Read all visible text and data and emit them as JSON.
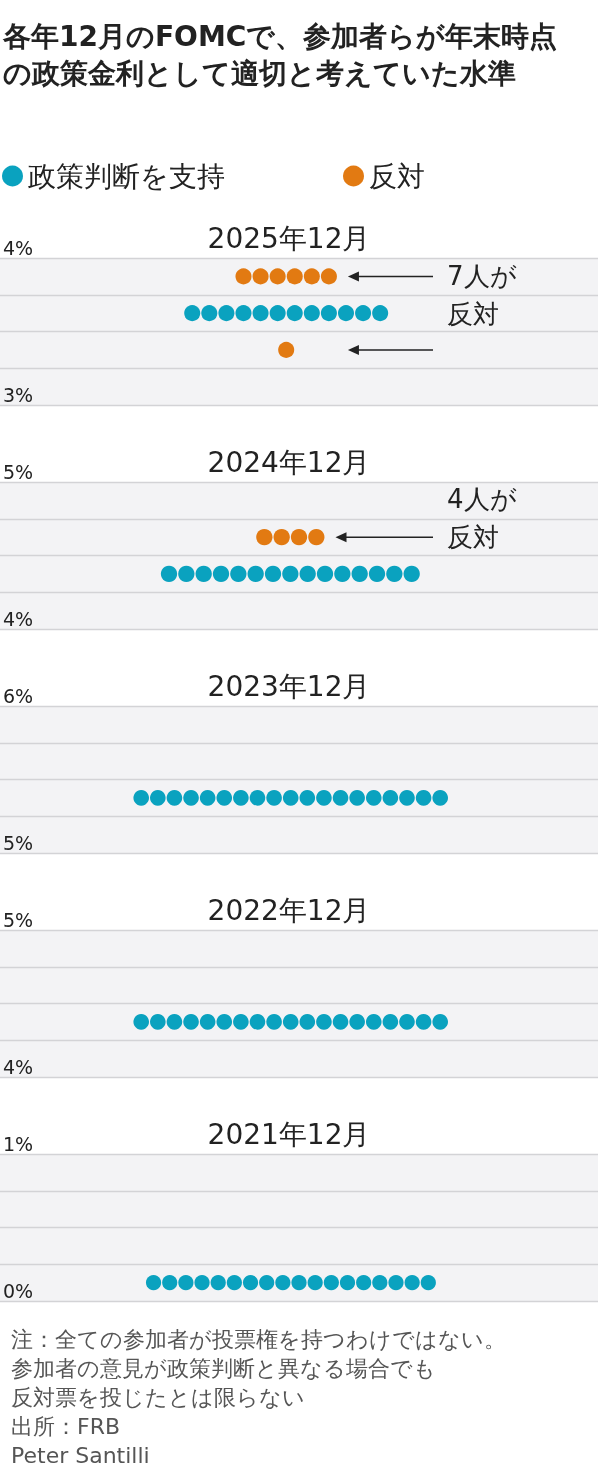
{
  "chart_data": [
    {
      "type": "scatter",
      "title": "各年12月のFOMCで、参加者らが年末時点の政策金利として適切と考えていた水準",
      "subtitle": "2025年12月",
      "legend": "top left",
      "marker": "circle",
      "grid": "y",
      "tick_labels": "y",
      "categories": [
        null,
        null,
        null,
        null,
        null,
        null,
        null,
        null,
        null,
        null,
        null,
        null,
        null,
        null,
        null,
        null,
        null,
        null,
        null,
        null,
        null,
        null,
        null,
        null,
        null,
        null,
        null,
        null,
        null,
        null,
        null,
        null,
        null,
        null,
        null,
        null,
        null,
        null,
        null,
        null,
        null,
        null,
        null,
        null,
        null,
        null,
        null,
        null,
        null,
        null,
        null,
        null,
        null,
        null,
        null,
        null,
        null,
        null,
        null,
        null,
        null,
        null,
        null,
        null,
        null,
        null,
        null,
        null,
        null,
        null
      ],
      "series": [
        {
          "name": "政策判断を支持",
          "color": "#0aa2bf",
          "values": [
            null,
            null,
            null,
            null,
            null,
            null,
            null,
            null,
            null,
            null,
            null,
            null,
            null,
            null,
            null,
            null,
            null,
            null,
            null,
            null,
            null,
            null,
            3.625,
            null,
            3.625,
            null,
            3.625,
            null,
            3.625,
            null,
            3.625,
            null,
            3.625,
            null,
            3.625,
            null,
            3.625,
            null,
            3.625,
            null,
            3.625,
            null,
            3.625,
            null,
            3.625,
            null,
            null,
            null,
            null,
            null,
            null,
            null,
            null,
            null,
            null,
            null,
            null,
            null,
            null,
            null,
            null,
            null,
            null,
            null,
            null,
            null,
            null,
            null,
            null,
            null
          ]
        },
        {
          "name": "反対",
          "color": "#e27a12",
          "values": [
            null,
            null,
            null,
            null,
            null,
            null,
            null,
            null,
            null,
            null,
            null,
            null,
            null,
            null,
            null,
            null,
            null,
            null,
            null,
            null,
            null,
            null,
            null,
            null,
            null,
            null,
            null,
            null,
            3.875,
            null,
            3.875,
            null,
            3.875,
            null,
            3.875,
            null,
            3.875,
            null,
            3.875,
            null,
            null,
            null,
            null,
            null,
            null,
            null,
            null,
            null,
            null,
            null,
            null,
            null,
            null,
            null,
            null,
            null,
            null,
            null,
            null,
            null,
            null,
            null,
            null,
            null,
            null,
            null,
            null,
            null,
            null,
            null
          ]
        },
        {
          "color": "#e27a12",
          "values": [
            null,
            null,
            null,
            null,
            null,
            null,
            null,
            null,
            null,
            null,
            null,
            null,
            null,
            null,
            null,
            null,
            null,
            null,
            null,
            null,
            null,
            null,
            null,
            null,
            null,
            null,
            null,
            null,
            null,
            null,
            null,
            null,
            null,
            3.375,
            null,
            null,
            null,
            null,
            null,
            null,
            null,
            null,
            null,
            null,
            null,
            null,
            null,
            null,
            null,
            null,
            null,
            null,
            null,
            null,
            null,
            null,
            null,
            null,
            null,
            null,
            null,
            null,
            null,
            null,
            null,
            null,
            null,
            null,
            null,
            null
          ]
        }
      ],
      "ylim": [
        3,
        4
      ],
      "yticks": [
        {
          "value": 3,
          "label": "3%"
        },
        {
          "value": 3.25,
          "label": null
        },
        {
          "value": 3.5,
          "label": null
        },
        {
          "value": 3.75,
          "label": null
        },
        {
          "value": 4,
          "label": "4%"
        }
      ],
      "annotations": [
        "7人が反対"
      ]
    },
    {
      "type": "scatter",
      "title": "2024年12月",
      "marker": "circle",
      "grid": "y",
      "tick_labels": "y",
      "categories": [
        null,
        null,
        null,
        null,
        null,
        null,
        null,
        null,
        null,
        null,
        null,
        null,
        null,
        null,
        null,
        null,
        null,
        null,
        null,
        null,
        null,
        null,
        null,
        null,
        null,
        null,
        null,
        null,
        null,
        null,
        null,
        null,
        null,
        null,
        null,
        null,
        null,
        null,
        null,
        null,
        null,
        null,
        null,
        null,
        null,
        null,
        null,
        null,
        null,
        null,
        null,
        null,
        null,
        null,
        null,
        null,
        null,
        null,
        null,
        null,
        null,
        null,
        null,
        null,
        null,
        null,
        null,
        null,
        null
      ],
      "series": [
        {
          "color": "#0aa2bf",
          "values": [
            null,
            null,
            null,
            null,
            null,
            null,
            null,
            null,
            null,
            null,
            null,
            null,
            null,
            null,
            null,
            null,
            null,
            null,
            null,
            4.375,
            null,
            4.375,
            null,
            4.375,
            null,
            4.375,
            null,
            4.375,
            null,
            4.375,
            null,
            4.375,
            null,
            4.375,
            null,
            4.375,
            null,
            4.375,
            null,
            4.375,
            null,
            4.375,
            null,
            4.375,
            null,
            4.375,
            null,
            4.375,
            null,
            null,
            null,
            null,
            null,
            null,
            null,
            null,
            null,
            null,
            null,
            null,
            null,
            null,
            null,
            null,
            null,
            null,
            null,
            null,
            null
          ]
        },
        {
          "color": "#e27a12",
          "values": [
            null,
            null,
            null,
            null,
            null,
            null,
            null,
            null,
            null,
            null,
            null,
            null,
            null,
            null,
            null,
            null,
            null,
            null,
            null,
            null,
            null,
            null,
            null,
            null,
            null,
            null,
            null,
            null,
            null,
            null,
            4.625,
            null,
            4.625,
            null,
            4.625,
            null,
            4.625,
            null,
            null,
            null,
            null,
            null,
            null,
            null,
            null,
            null,
            null,
            null,
            null,
            null,
            null,
            null,
            null,
            null,
            null,
            null,
            null,
            null,
            null,
            null,
            null,
            null,
            null,
            null,
            null,
            null,
            null,
            null,
            null
          ]
        }
      ],
      "ylim": [
        4,
        5
      ],
      "yticks": [
        {
          "value": 4,
          "label": "4%"
        },
        {
          "value": 4.25,
          "label": null
        },
        {
          "value": 4.5,
          "label": null
        },
        {
          "value": 4.75,
          "label": null
        },
        {
          "value": 5,
          "label": "5%"
        }
      ],
      "annotations": [
        "4人が反対"
      ]
    },
    {
      "type": "scatter",
      "title": "2023年12月",
      "marker": "circle",
      "grid": "y",
      "tick_labels": "y",
      "categories": [
        null,
        null,
        null,
        null,
        null,
        null,
        null,
        null,
        null,
        null,
        null,
        null,
        null,
        null,
        null,
        null,
        null,
        null,
        null,
        null,
        null,
        null,
        null,
        null,
        null,
        null,
        null,
        null,
        null,
        null,
        null,
        null,
        null,
        null,
        null,
        null
      ],
      "series": [
        {
          "color": "#0aa2bf",
          "values": [
            null,
            null,
            null,
            null,
            null,
            null,
            null,
            null,
            5.375,
            5.375,
            5.375,
            5.375,
            5.375,
            5.375,
            5.375,
            5.375,
            5.375,
            5.375,
            5.375,
            5.375,
            5.375,
            5.375,
            5.375,
            5.375,
            5.375,
            5.375,
            5.375,
            null,
            null,
            null,
            null,
            null,
            null,
            null,
            null,
            null
          ]
        }
      ],
      "ylim": [
        5,
        6
      ],
      "yticks": [
        {
          "value": 5,
          "label": "5%"
        },
        {
          "value": 5.25,
          "label": null
        },
        {
          "value": 5.5,
          "label": null
        },
        {
          "value": 5.75,
          "label": null
        },
        {
          "value": 6,
          "label": "6%"
        }
      ]
    },
    {
      "type": "scatter",
      "title": "2022年12月",
      "marker": "circle",
      "grid": "y",
      "tick_labels": "y",
      "categories": [
        null,
        null,
        null,
        null,
        null,
        null,
        null,
        null,
        null,
        null,
        null,
        null,
        null,
        null,
        null,
        null,
        null,
        null,
        null,
        null,
        null,
        null,
        null,
        null,
        null,
        null,
        null,
        null,
        null,
        null,
        null,
        null,
        null,
        null,
        null,
        null
      ],
      "series": [
        {
          "color": "#0aa2bf",
          "values": [
            null,
            null,
            null,
            null,
            null,
            null,
            null,
            null,
            4.375,
            4.375,
            4.375,
            4.375,
            4.375,
            4.375,
            4.375,
            4.375,
            4.375,
            4.375,
            4.375,
            4.375,
            4.375,
            4.375,
            4.375,
            4.375,
            4.375,
            4.375,
            4.375,
            null,
            null,
            null,
            null,
            null,
            null,
            null,
            null,
            null
          ]
        }
      ],
      "ylim": [
        4,
        5
      ],
      "yticks": [
        {
          "value": 4,
          "label": "4%"
        },
        {
          "value": 4.25,
          "label": null
        },
        {
          "value": 4.5,
          "label": null
        },
        {
          "value": 4.75,
          "label": null
        },
        {
          "value": 5,
          "label": "5%"
        }
      ]
    },
    {
      "type": "scatter",
      "title": "2021年12月",
      "marker": "circle",
      "grid": "y",
      "tick_labels": "y",
      "categories": [
        null,
        null,
        null,
        null,
        null,
        null,
        null,
        null,
        null,
        null,
        null,
        null,
        null,
        null,
        null,
        null,
        null,
        null,
        null,
        null,
        null,
        null,
        null,
        null,
        null,
        null,
        null,
        null,
        null,
        null,
        null,
        null,
        null,
        null,
        null,
        null,
        null
      ],
      "series": [
        {
          "color": "#0aa2bf",
          "values": [
            null,
            null,
            null,
            null,
            null,
            null,
            null,
            null,
            null,
            0.125,
            0.125,
            0.125,
            0.125,
            0.125,
            0.125,
            0.125,
            0.125,
            0.125,
            0.125,
            0.125,
            0.125,
            0.125,
            0.125,
            0.125,
            0.125,
            0.125,
            0.125,
            null,
            null,
            null,
            null,
            null,
            null,
            null,
            null,
            null,
            null
          ]
        }
      ],
      "ylim": [
        0,
        1
      ],
      "yticks": [
        {
          "value": 0,
          "label": "0%"
        },
        {
          "value": 0.25,
          "label": null
        },
        {
          "value": 0.5,
          "label": null
        },
        {
          "value": 0.75,
          "label": null
        },
        {
          "value": 1,
          "label": "1%"
        }
      ],
      "annotations": [
        "注：全ての参加者が投票権を持つわけではない。",
        "参加者の意見が政策判断と異なる場合でも",
        "反対票を投じたとは限らない",
        "出所：FRB",
        "Peter Santilli"
      ]
    }
  ]
}
